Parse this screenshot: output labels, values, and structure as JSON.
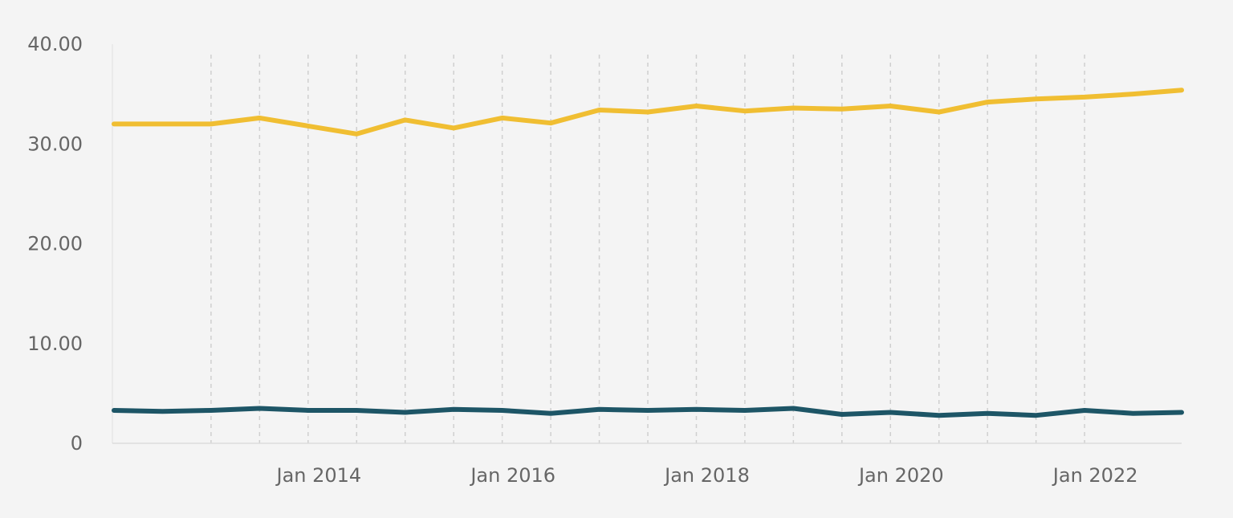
{
  "chart_data": {
    "type": "line",
    "title": "",
    "xlabel": "",
    "ylabel": "",
    "x": [
      "2012-07",
      "2013-01",
      "2013-07",
      "2014-01",
      "2014-07",
      "2015-01",
      "2015-07",
      "2016-01",
      "2016-07",
      "2017-01",
      "2017-07",
      "2018-01",
      "2018-07",
      "2019-01",
      "2019-07",
      "2020-01",
      "2020-07",
      "2021-01",
      "2021-07",
      "2022-01",
      "2022-07",
      "2023-01",
      "2023-07"
    ],
    "xlim": [
      "2012-07",
      "2023-07"
    ],
    "ylim": [
      0,
      40
    ],
    "yticks": [
      0,
      10,
      20,
      30,
      40
    ],
    "ytick_labels": [
      "0",
      "10.00",
      "20.00",
      "30.00",
      "40.00"
    ],
    "xticks": [
      "2014-01",
      "2016-01",
      "2018-01",
      "2020-01",
      "2022-01"
    ],
    "xtick_labels": [
      "Jan 2014",
      "Jan 2016",
      "Jan 2018",
      "Jan 2020",
      "Jan 2022"
    ],
    "grid": {
      "vertical": true,
      "horizontal": false
    },
    "series": [
      {
        "color": "#f0be32",
        "values": [
          32.0,
          32.0,
          32.0,
          32.6,
          31.8,
          31.0,
          32.4,
          31.6,
          32.6,
          32.1,
          33.4,
          33.2,
          33.8,
          33.3,
          33.6,
          33.5,
          33.8,
          33.2,
          34.2,
          34.5,
          34.7,
          35.0,
          35.4
        ]
      },
      {
        "color": "#1d5566",
        "values": [
          3.3,
          3.2,
          3.3,
          3.5,
          3.3,
          3.3,
          3.1,
          3.4,
          3.3,
          3.0,
          3.4,
          3.3,
          3.4,
          3.3,
          3.5,
          2.9,
          3.1,
          2.8,
          3.0,
          2.8,
          3.3,
          3.0,
          3.1
        ]
      }
    ]
  }
}
